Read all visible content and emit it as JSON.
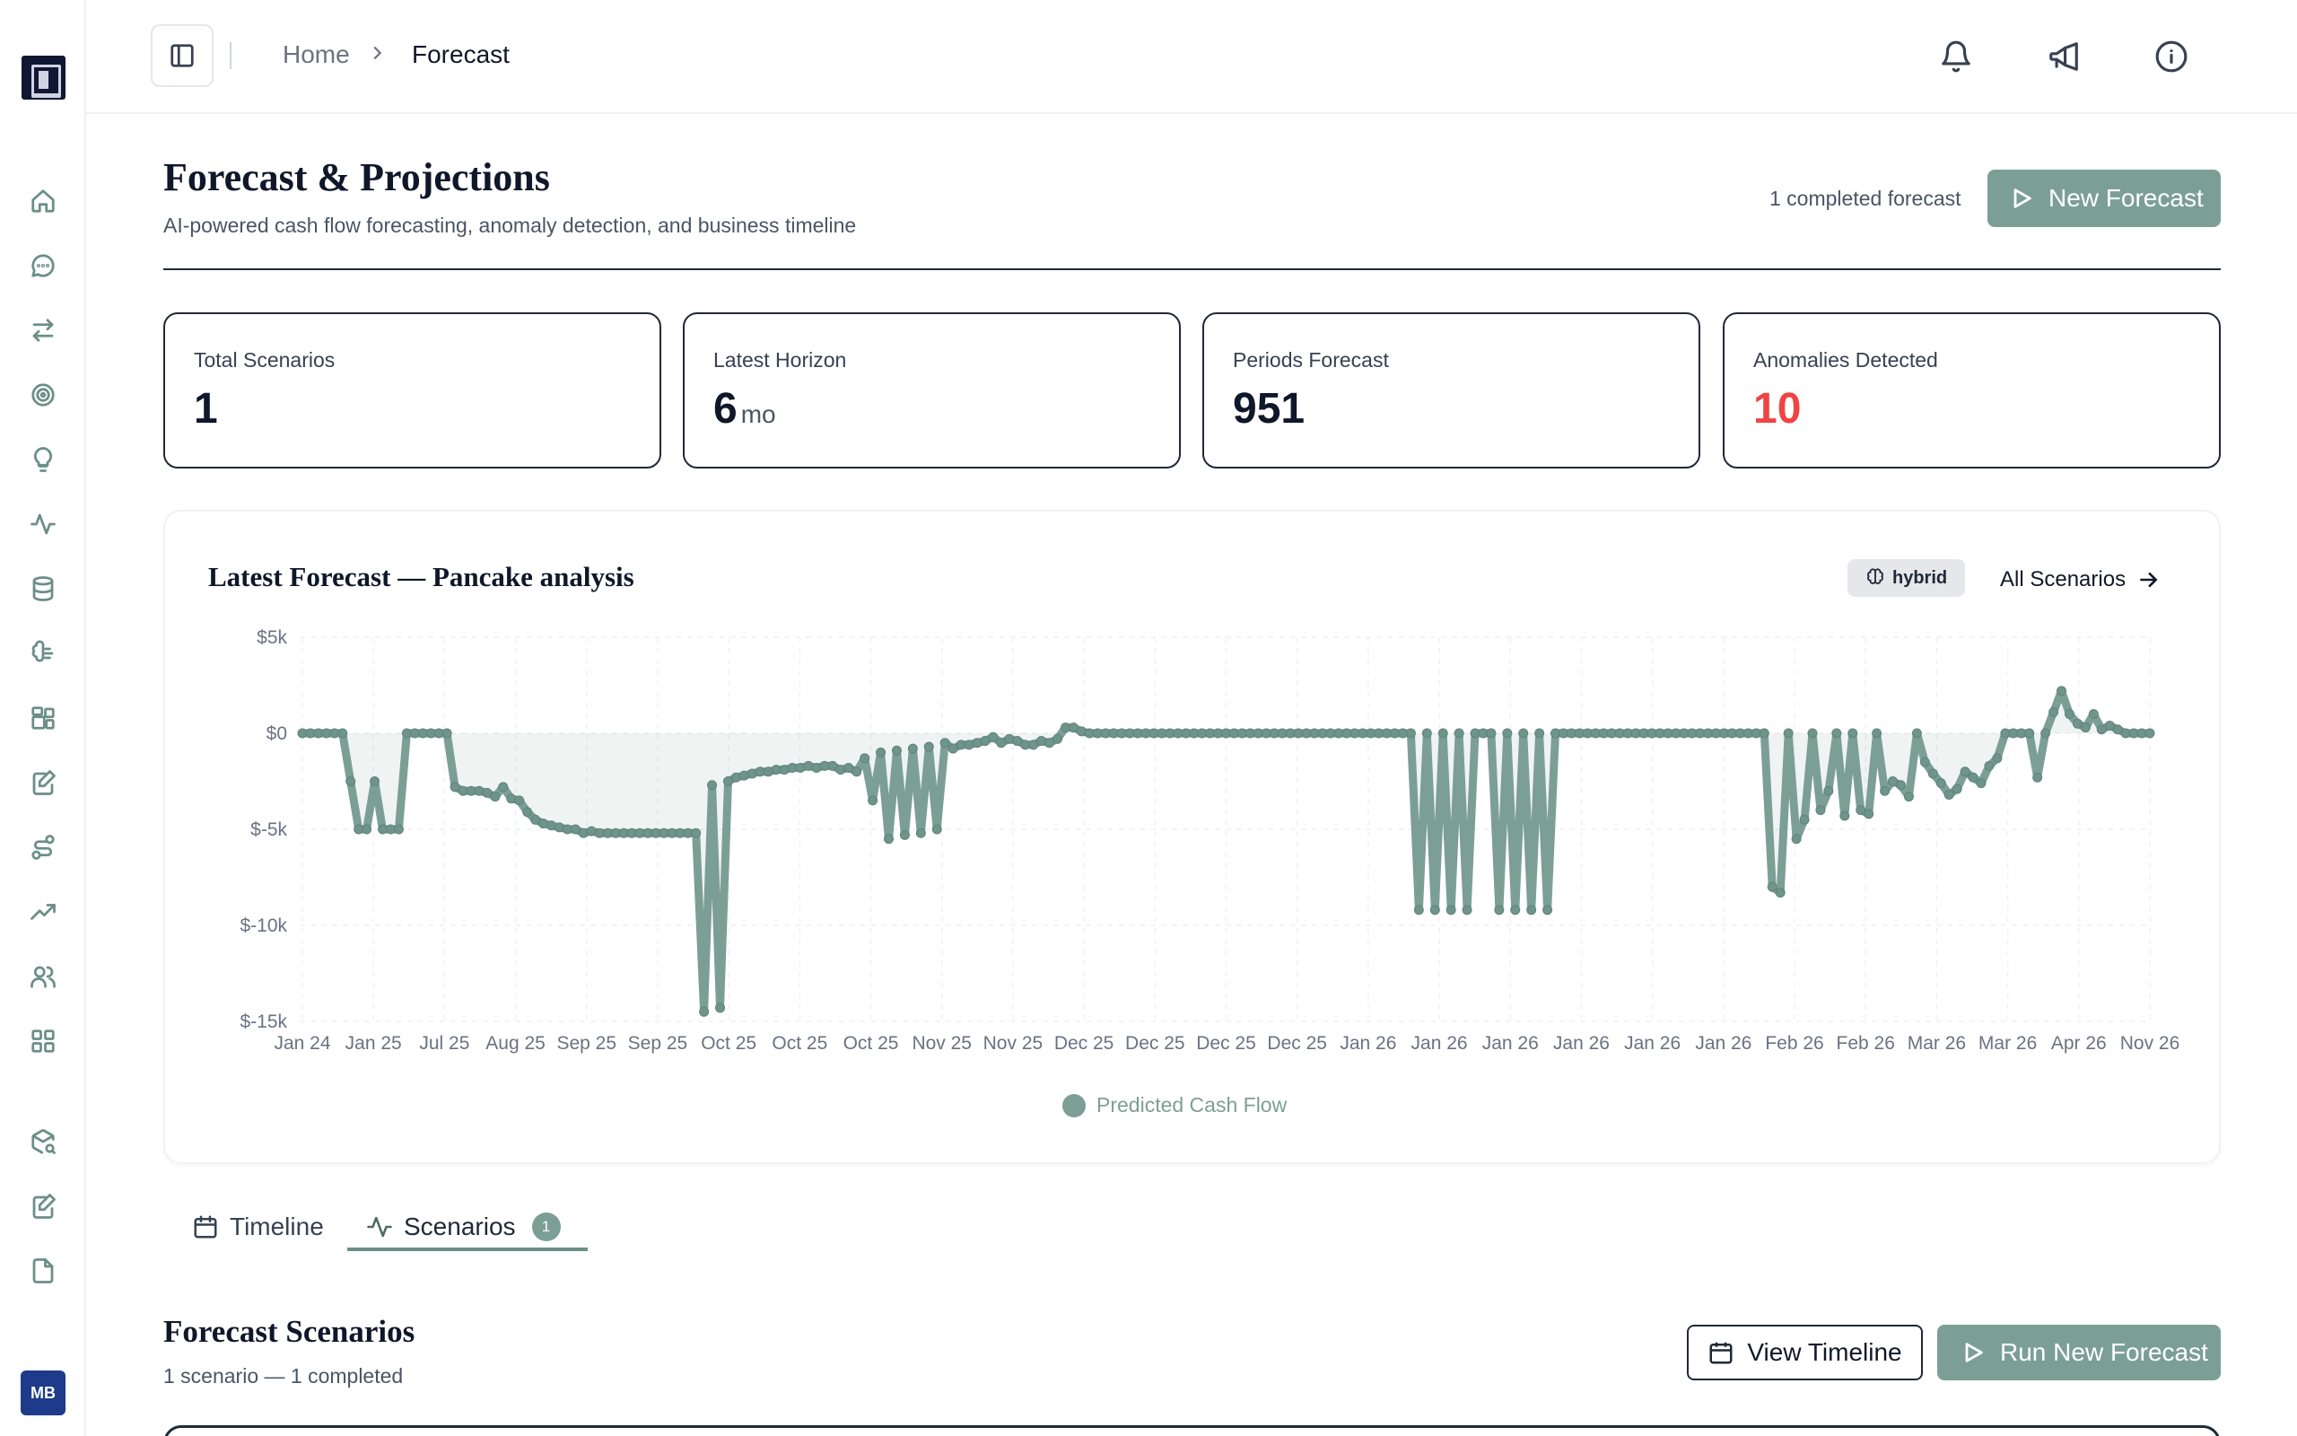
{
  "sidebar": {
    "items": [
      "home-icon",
      "chat-icon",
      "transfer-icon",
      "target-icon",
      "lightbulb-icon",
      "activity-icon",
      "database-icon",
      "brain-icon",
      "widgets-icon",
      "edit-doc-icon",
      "route-icon",
      "trend-icon",
      "users-icon",
      "grid-icon",
      "package-search-icon",
      "notes-icon",
      "file-icon"
    ],
    "avatar_initials": "MB"
  },
  "header": {
    "breadcrumb_home": "Home",
    "breadcrumb_current": "Forecast"
  },
  "page": {
    "title": "Forecast & Projections",
    "subtitle": "AI-powered cash flow forecasting, anomaly detection, and business timeline",
    "completed_note": "1 completed forecast",
    "new_forecast_label": "New Forecast"
  },
  "stats": [
    {
      "label": "Total Scenarios",
      "value": "1",
      "unit": ""
    },
    {
      "label": "Latest Horizon",
      "value": "6",
      "unit": "mo"
    },
    {
      "label": "Periods Forecast",
      "value": "951",
      "unit": ""
    },
    {
      "label": "Anomalies Detected",
      "value": "10",
      "unit": ""
    }
  ],
  "chart_card": {
    "title": "Latest Forecast — Pancake analysis",
    "chip_label": "hybrid",
    "all_scenarios_label": "All Scenarios"
  },
  "colors": {
    "accent": "#7c9f95",
    "danger": "#ef4444",
    "text_dark": "#0f172a"
  },
  "chart_data": {
    "type": "line",
    "y_ticks": [
      "$5k",
      "$0",
      "$-5k",
      "$-10k",
      "$-15k"
    ],
    "ylim": [
      -15000,
      5000
    ],
    "x_tick_labels": [
      "Jan 24",
      "Jan 25",
      "Jul 25",
      "Aug 25",
      "Sep 25",
      "Sep 25",
      "Oct 25",
      "Oct 25",
      "Oct 25",
      "Nov 25",
      "Nov 25",
      "Dec 25",
      "Dec 25",
      "Dec 25",
      "Dec 25",
      "Jan 26",
      "Jan 26",
      "Jan 26",
      "Jan 26",
      "Jan 26",
      "Jan 26",
      "Feb 26",
      "Feb 26",
      "Mar 26",
      "Mar 26",
      "Apr 26",
      "Nov 26"
    ],
    "series": [
      {
        "name": "Predicted Cash Flow",
        "values": [
          0,
          0,
          0,
          0,
          0,
          0,
          -2500,
          -5000,
          -5000,
          -2500,
          -5000,
          -5000,
          -5000,
          0,
          0,
          0,
          0,
          0,
          0,
          -2800,
          -3000,
          -3000,
          -3000,
          -3100,
          -3300,
          -2800,
          -3400,
          -3500,
          -4100,
          -4500,
          -4700,
          -4800,
          -4900,
          -5000,
          -5000,
          -5200,
          -5100,
          -5200,
          -5200,
          -5200,
          -5200,
          -5200,
          -5200,
          -5200,
          -5200,
          -5200,
          -5200,
          -5200,
          -5200,
          -5200,
          -14500,
          -2700,
          -14300,
          -2500,
          -2300,
          -2200,
          -2100,
          -2000,
          -2000,
          -1900,
          -1900,
          -1800,
          -1800,
          -1700,
          -1800,
          -1700,
          -1700,
          -1900,
          -1800,
          -2000,
          -1300,
          -3500,
          -1000,
          -5500,
          -900,
          -5300,
          -800,
          -5200,
          -700,
          -5000,
          -500,
          -800,
          -600,
          -600,
          -500,
          -400,
          -200,
          -500,
          -300,
          -400,
          -600,
          -600,
          -400,
          -500,
          -300,
          300,
          300,
          100,
          0,
          0,
          0,
          0,
          0,
          0,
          0,
          0,
          0,
          0,
          0,
          0,
          0,
          0,
          0,
          0,
          0,
          0,
          0,
          0,
          0,
          0,
          0,
          0,
          0,
          0,
          0,
          0,
          0,
          0,
          0,
          0,
          0,
          0,
          0,
          0,
          0,
          0,
          0,
          0,
          0,
          -9200,
          0,
          -9200,
          0,
          -9200,
          0,
          -9200,
          0,
          0,
          0,
          -9200,
          0,
          -9200,
          0,
          -9200,
          0,
          -9200,
          0,
          0,
          0,
          0,
          0,
          0,
          0,
          0,
          0,
          0,
          0,
          0,
          0,
          0,
          0,
          0,
          0,
          0,
          0,
          0,
          0,
          0,
          0,
          0,
          0,
          0,
          0,
          -8000,
          -8300,
          0,
          -5500,
          -4500,
          0,
          -4000,
          -3000,
          0,
          -4300,
          0,
          -4000,
          -4200,
          0,
          -3000,
          -2500,
          -2700,
          -3300,
          0,
          -1500,
          -2100,
          -2600,
          -3200,
          -2900,
          -2000,
          -2300,
          -2600,
          -1700,
          -1300,
          0,
          0,
          0,
          0,
          -2300,
          0,
          1100,
          2200,
          1000,
          500,
          300,
          1000,
          200,
          400,
          200,
          0,
          0,
          0,
          0
        ]
      }
    ],
    "legend": "bottom-center",
    "grid": true
  },
  "tabs": [
    {
      "label": "Timeline",
      "badge": ""
    },
    {
      "label": "Scenarios",
      "badge": "1"
    }
  ],
  "scenarios_section": {
    "title": "Forecast Scenarios",
    "subtitle": "1 scenario — 1 completed",
    "view_timeline_label": "View Timeline",
    "run_new_label": "Run New Forecast"
  }
}
